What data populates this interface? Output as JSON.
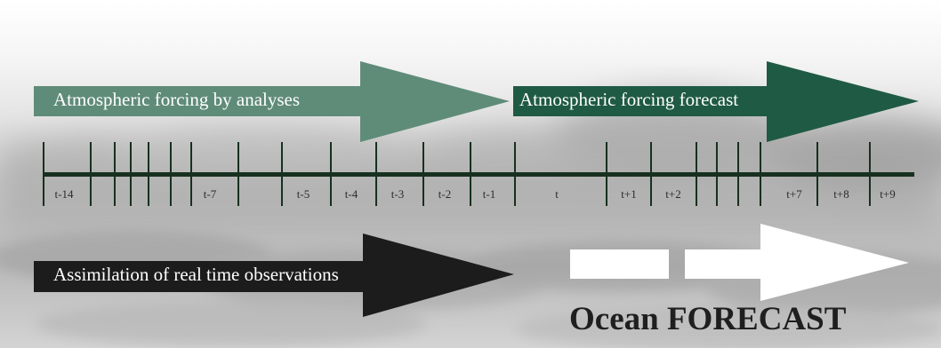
{
  "colors": {
    "analyses_arrow": "#5f8c78",
    "forecast_arrow": "#1f5a44",
    "assimilation_arrow": "#1c1c1c",
    "timeline": "#17301f",
    "ocean_arrow": "#ffffff"
  },
  "arrows": {
    "analyses_label": "Atmospheric forcing by analyses",
    "forecast_label": "Atmospheric forcing forecast",
    "assimilation_label": "Assimilation of real time observations"
  },
  "timeline": {
    "tick_count": 22,
    "labels": [
      {
        "text": "t-14",
        "key": "t-14"
      },
      {
        "text": "t-7",
        "key": "t-7"
      },
      {
        "text": "t-5",
        "key": "t-5"
      },
      {
        "text": "t-4",
        "key": "t-4"
      },
      {
        "text": "t-3",
        "key": "t-3"
      },
      {
        "text": "t-2",
        "key": "t-2"
      },
      {
        "text": "t-1",
        "key": "t-1"
      },
      {
        "text": "t",
        "key": "t"
      },
      {
        "text": "t+1",
        "key": "t+1"
      },
      {
        "text": "t+2",
        "key": "t+2"
      },
      {
        "text": "t+7",
        "key": "t+7"
      },
      {
        "text": "t+8",
        "key": "t+8"
      },
      {
        "text": "t+9",
        "key": "t+9"
      }
    ]
  },
  "ocean_forecast_title": "Ocean FORECAST"
}
